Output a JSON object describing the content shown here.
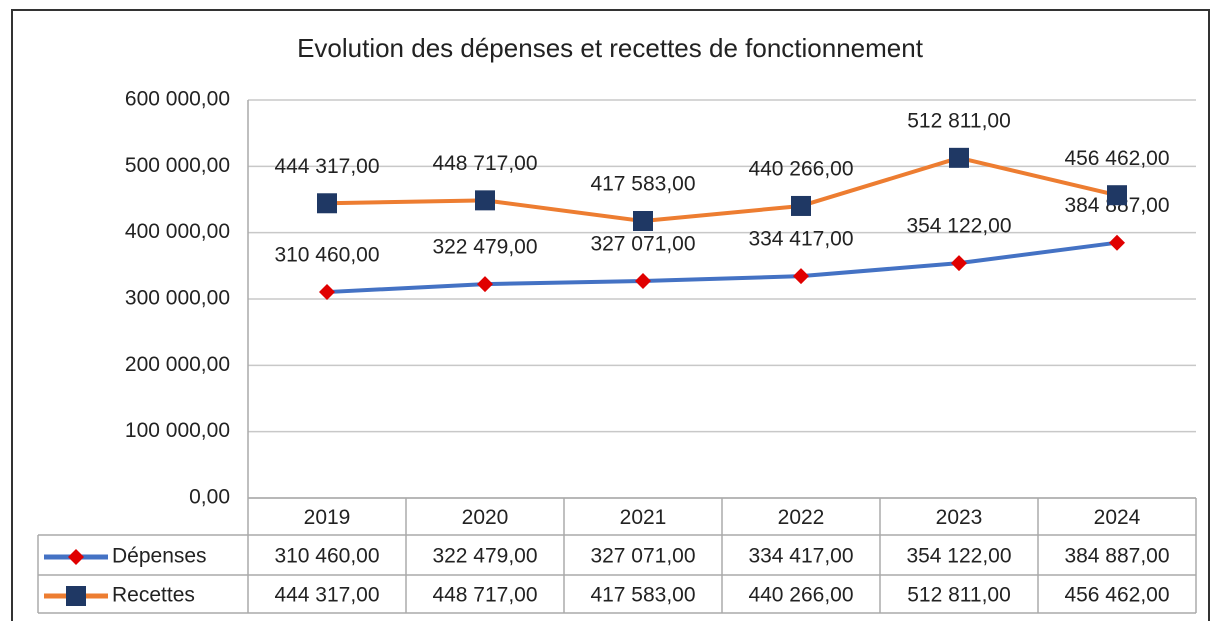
{
  "chart_data": {
    "type": "line",
    "title": "Evolution des dépenses et recettes de fonctionnement",
    "categories": [
      "2019",
      "2020",
      "2021",
      "2022",
      "2023",
      "2024"
    ],
    "series": [
      {
        "name": "Dépenses",
        "color": "#4472c4",
        "marker": "diamond",
        "marker_color": "#e00000",
        "values": [
          310460,
          322479,
          327071,
          334417,
          354122,
          384887
        ],
        "value_labels": [
          "310 460,00",
          "322 479,00",
          "327 071,00",
          "334 417,00",
          "354 122,00",
          "384 887,00"
        ]
      },
      {
        "name": "Recettes",
        "color": "#ed7d31",
        "marker": "square",
        "marker_color": "#1f3864",
        "values": [
          444317,
          448717,
          417583,
          440266,
          512811,
          456462
        ],
        "value_labels": [
          "444 317,00",
          "448 717,00",
          "417 583,00",
          "440 266,00",
          "512 811,00",
          "456 462,00"
        ]
      }
    ],
    "ylim": [
      0,
      600000
    ],
    "yticks": [
      {
        "value": 0,
        "label": "0,00"
      },
      {
        "value": 100000,
        "label": "100 000,00"
      },
      {
        "value": 200000,
        "label": "200 000,00"
      },
      {
        "value": 300000,
        "label": "300 000,00"
      },
      {
        "value": 400000,
        "label": "400 000,00"
      },
      {
        "value": 500000,
        "label": "500 000,00"
      },
      {
        "value": 600000,
        "label": "600 000,00"
      }
    ],
    "grid": true,
    "data_table": true
  }
}
